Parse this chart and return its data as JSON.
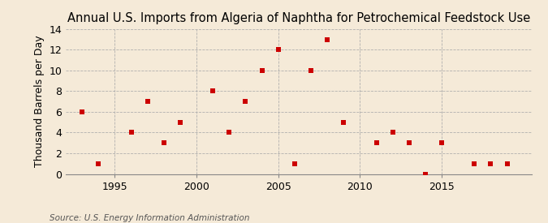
{
  "title": "Annual U.S. Imports from Algeria of Naphtha for Petrochemical Feedstock Use",
  "ylabel": "Thousand Barrels per Day",
  "source": "Source: U.S. Energy Information Administration",
  "background_color": "#f5ead8",
  "plot_background_color": "#f5ead8",
  "marker_color": "#cc0000",
  "grid_color": "#aaaaaa",
  "years": [
    1993,
    1994,
    1996,
    1997,
    1998,
    1999,
    2001,
    2002,
    2003,
    2004,
    2005,
    2006,
    2007,
    2008,
    2009,
    2011,
    2012,
    2013,
    2014,
    2015,
    2017,
    2018,
    2019
  ],
  "values": [
    6,
    1,
    4,
    7,
    3,
    5,
    8,
    4,
    7,
    10,
    12,
    1,
    10,
    13,
    5,
    3,
    4,
    3,
    0,
    3,
    1,
    1,
    1
  ],
  "ylim": [
    0,
    14
  ],
  "yticks": [
    0,
    2,
    4,
    6,
    8,
    10,
    12,
    14
  ],
  "xticks": [
    1995,
    2000,
    2005,
    2010,
    2015
  ],
  "xlim": [
    1992,
    2020.5
  ],
  "marker_size": 25,
  "title_fontsize": 10.5,
  "axis_fontsize": 9,
  "source_fontsize": 7.5
}
